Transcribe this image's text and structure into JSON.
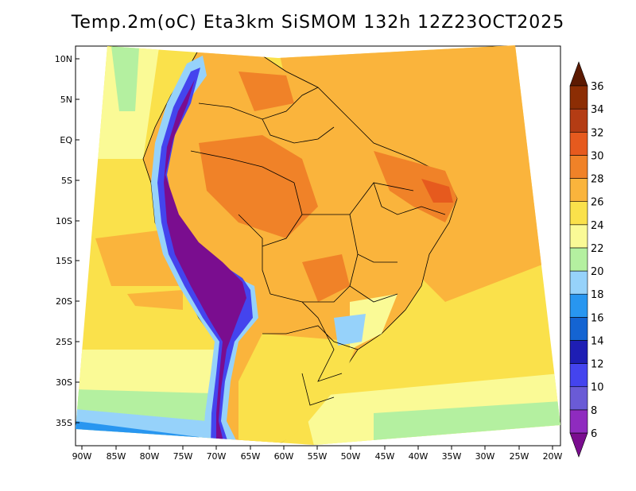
{
  "title": "Temp.2m(oC) Eta3km SiSMOM 132h 12Z23OCT2025",
  "latitude_labels": [
    "10N",
    "5N",
    "EQ",
    "5S",
    "10S",
    "15S",
    "20S",
    "25S",
    "30S",
    "35S"
  ],
  "longitude_labels": [
    "90W",
    "85W",
    "80W",
    "75W",
    "70W",
    "65W",
    "60W",
    "55W",
    "50W",
    "45W",
    "40W",
    "35W",
    "30W",
    "25W",
    "20W"
  ],
  "colorbar": {
    "unit": "oC",
    "levels": [
      "6",
      "8",
      "10",
      "12",
      "14",
      "16",
      "18",
      "20",
      "22",
      "24",
      "26",
      "28",
      "30",
      "32",
      "34",
      "36"
    ],
    "colors": [
      "#7a0d8f",
      "#8f2bbf",
      "#6a5bd6",
      "#4444ee",
      "#1e1eb4",
      "#1464d2",
      "#2896f0",
      "#96d2fa",
      "#b4f0a0",
      "#fafa96",
      "#fae14b",
      "#fab43c",
      "#f08228",
      "#e65a1e",
      "#b43c14",
      "#8c2d04",
      "#5c1a02"
    ]
  },
  "map_colors": {
    "ocean_warm": "#fab43c",
    "ocean_mild": "#fae14b",
    "ocean_cool": "#fafa96",
    "land_hot": "#f08228",
    "land_warm": "#fab43c",
    "andes_high": "#7a0d8f",
    "andes_mid": "#4444ee",
    "andes_low": "#96d2fa",
    "coast_cool": "#b4f0a0",
    "south_cold": "#2896f0",
    "border": "#000000"
  }
}
